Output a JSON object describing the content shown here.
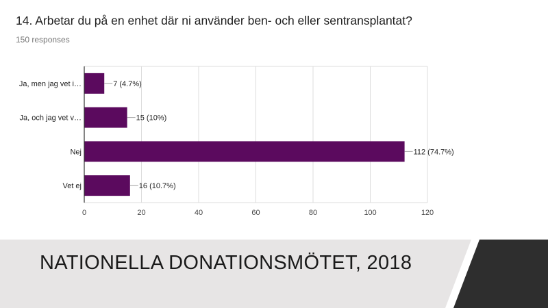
{
  "header": {
    "question": "14. Arbetar du på en enhet där ni använder ben- och eller sentransplantat?",
    "responses": "150 responses"
  },
  "footer": {
    "text": "NATIONELLA DONATIONSMÖTET, 2018"
  },
  "colors": {
    "bar": "#5b0a5e",
    "footer_bg": "#e7e5e5",
    "footer_band": "#2e2e2e",
    "grid": "#dcdcdc"
  },
  "chart_data": {
    "type": "bar",
    "orientation": "horizontal",
    "categories": [
      "Ja, men jag vet i…",
      "Ja, och jag vet v…",
      "Nej",
      "Vet ej"
    ],
    "values": [
      7,
      15,
      112,
      16
    ],
    "data_labels": [
      "7 (4.7%)",
      "15 (10%)",
      "112 (74.7%)",
      "16 (10.7%)"
    ],
    "xlim": [
      0,
      120
    ],
    "xticks": [
      0,
      20,
      40,
      60,
      80,
      100,
      120
    ],
    "grid": true,
    "legend": "none"
  }
}
